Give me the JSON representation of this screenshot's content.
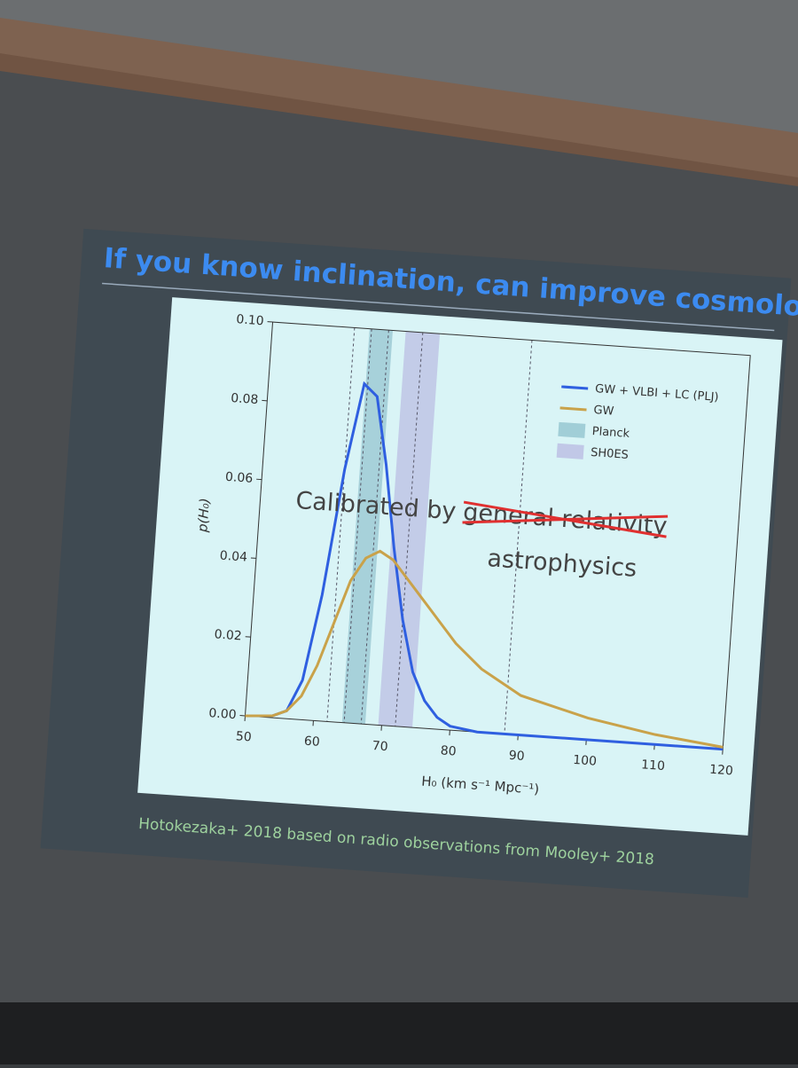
{
  "chart_data": {
    "type": "line",
    "title": "If you know inclination, can improve cosmology",
    "x_label": "H₀ (km s⁻¹ Mpc⁻¹)",
    "y_label": "p(H₀)",
    "x": [
      50,
      54,
      56,
      58,
      60,
      62,
      64,
      66,
      68,
      70,
      72,
      74,
      76,
      78,
      80,
      84,
      90,
      100,
      110,
      120
    ],
    "series": [
      {
        "name": "GW + VLBI + LC (PLJ)",
        "color": "#2f5fe0",
        "values": [
          0,
          0.0005,
          0.002,
          0.01,
          0.032,
          0.064,
          0.086,
          0.083,
          0.066,
          0.045,
          0.027,
          0.014,
          0.007,
          0.003,
          0.001,
          0,
          0,
          0,
          0,
          0
        ]
      },
      {
        "name": "GW",
        "color": "#c9a24a",
        "values": [
          0,
          0.0005,
          0.002,
          0.006,
          0.014,
          0.025,
          0.036,
          0.042,
          0.044,
          0.042,
          0.038,
          0.034,
          0.03,
          0.026,
          0.022,
          0.016,
          0.01,
          0.0055,
          0.0025,
          0.0005
        ]
      }
    ],
    "bands": [
      {
        "name": "Planck",
        "color": "#6aa7b8",
        "range": [
          64.2,
          67.6
        ]
      },
      {
        "name": "SH0ES",
        "color": "#a99bd8",
        "range": [
          69.5,
          74.5
        ]
      }
    ],
    "vlines": [
      62,
      64.5,
      67,
      72,
      88
    ],
    "xlim": [
      50,
      120
    ],
    "xticks": [
      50,
      60,
      70,
      80,
      90,
      100,
      110,
      120
    ],
    "ylim": [
      0,
      0.1
    ],
    "yticks": [
      {
        "value": 0,
        "label": "0.00"
      },
      0.02,
      0.04,
      0.06,
      0.08,
      {
        "value": 0.1,
        "label": "0.10"
      }
    ],
    "legend": "upper right",
    "annotation": {
      "prefix": "Calibrated by",
      "struck": "general relativity",
      "replacement": "astrophysics"
    },
    "footer": "Hotokezaka+ 2018 based on radio observations from Mooley+ 2018"
  }
}
